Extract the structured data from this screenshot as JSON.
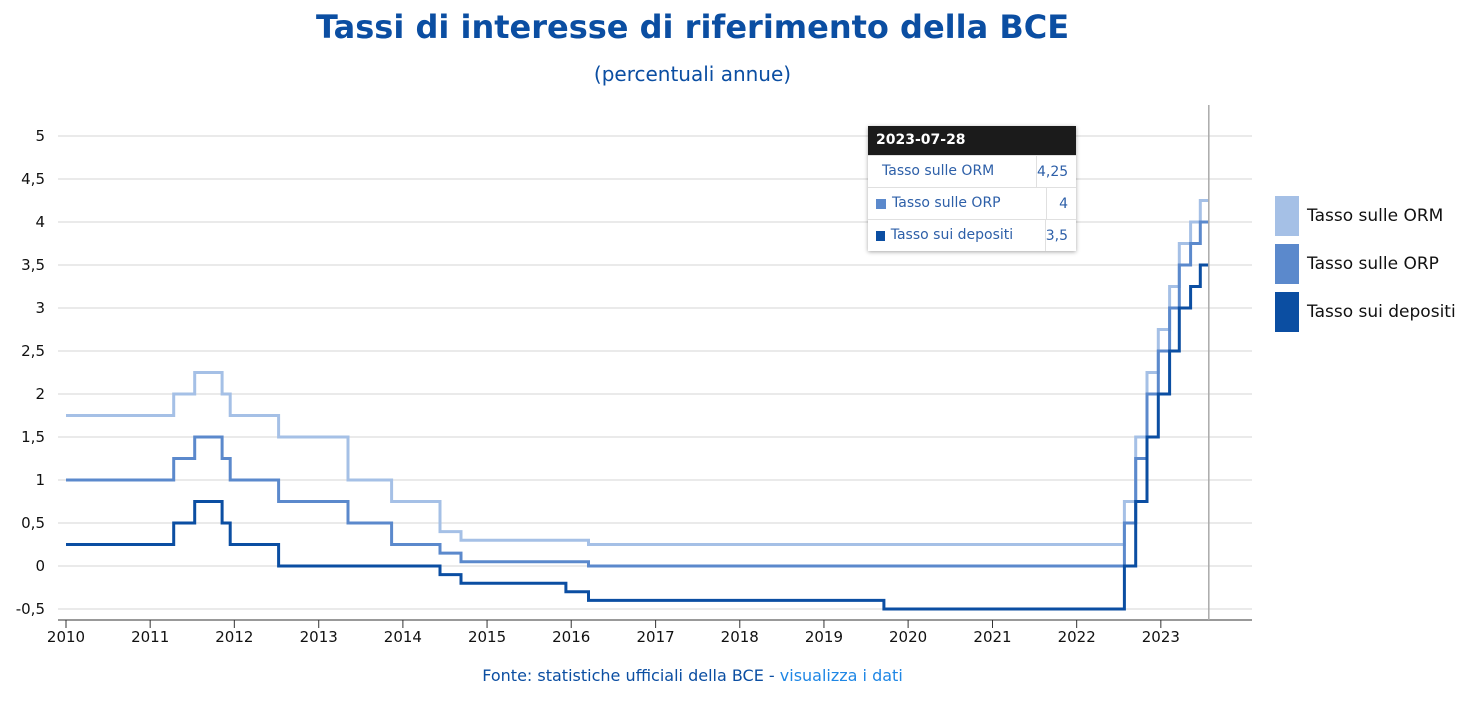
{
  "chart_data": {
    "type": "line",
    "step": true,
    "title": "Tassi di interesse di riferimento della BCE",
    "subtitle": "(percentuali annue)",
    "y_ticks": [
      "5",
      "4,5",
      "4",
      "3,5",
      "3",
      "2,5",
      "2",
      "1,5",
      "1",
      "0,5",
      "0",
      "-0,5"
    ],
    "x_ticks": [
      "2010",
      "2011",
      "2012",
      "2013",
      "2014",
      "2015",
      "2016",
      "2017",
      "2018",
      "2019",
      "2020",
      "2021",
      "2022",
      "2023"
    ],
    "ylim": [
      -0.6,
      5.3
    ],
    "xlim": [
      "2010-01-01",
      "2023-12-31"
    ],
    "grid": true,
    "legend_position": "right",
    "series": [
      {
        "name": "Tasso sulle ORM",
        "color": "#a5c0e6",
        "points": [
          [
            "2010-01-01",
            1.75
          ],
          [
            "2011-04-13",
            2.0
          ],
          [
            "2011-07-13",
            2.25
          ],
          [
            "2011-11-09",
            2.0
          ],
          [
            "2011-12-14",
            1.75
          ],
          [
            "2012-07-11",
            1.5
          ],
          [
            "2013-05-08",
            1.0
          ],
          [
            "2013-11-13",
            0.75
          ],
          [
            "2014-06-11",
            0.4
          ],
          [
            "2014-09-10",
            0.3
          ],
          [
            "2016-03-16",
            0.25
          ],
          [
            "2022-07-27",
            0.75
          ],
          [
            "2022-09-14",
            1.5
          ],
          [
            "2022-11-02",
            2.25
          ],
          [
            "2022-12-21",
            2.75
          ],
          [
            "2023-02-08",
            3.25
          ],
          [
            "2023-03-22",
            3.75
          ],
          [
            "2023-05-10",
            4.0
          ],
          [
            "2023-06-21",
            4.25
          ],
          [
            "2023-07-28",
            4.25
          ]
        ]
      },
      {
        "name": "Tasso sulle ORP",
        "color": "#5b89cc",
        "points": [
          [
            "2010-01-01",
            1.0
          ],
          [
            "2011-04-13",
            1.25
          ],
          [
            "2011-07-13",
            1.5
          ],
          [
            "2011-11-09",
            1.25
          ],
          [
            "2011-12-14",
            1.0
          ],
          [
            "2012-07-11",
            0.75
          ],
          [
            "2013-05-08",
            0.5
          ],
          [
            "2013-11-13",
            0.25
          ],
          [
            "2014-06-11",
            0.15
          ],
          [
            "2014-09-10",
            0.05
          ],
          [
            "2016-03-16",
            0.0
          ],
          [
            "2022-07-27",
            0.5
          ],
          [
            "2022-09-14",
            1.25
          ],
          [
            "2022-11-02",
            2.0
          ],
          [
            "2022-12-21",
            2.5
          ],
          [
            "2023-02-08",
            3.0
          ],
          [
            "2023-03-22",
            3.5
          ],
          [
            "2023-05-10",
            3.75
          ],
          [
            "2023-06-21",
            4.0
          ],
          [
            "2023-07-28",
            4.0
          ]
        ]
      },
      {
        "name": "Tasso sui depositi",
        "color": "#0b4ea2",
        "points": [
          [
            "2010-01-01",
            0.25
          ],
          [
            "2011-04-13",
            0.5
          ],
          [
            "2011-07-13",
            0.75
          ],
          [
            "2011-11-09",
            0.5
          ],
          [
            "2011-12-14",
            0.25
          ],
          [
            "2012-07-11",
            0.0
          ],
          [
            "2014-06-11",
            -0.1
          ],
          [
            "2014-09-10",
            -0.2
          ],
          [
            "2015-12-09",
            -0.3
          ],
          [
            "2016-03-16",
            -0.4
          ],
          [
            "2019-09-18",
            -0.5
          ],
          [
            "2022-07-27",
            0.0
          ],
          [
            "2022-09-14",
            0.75
          ],
          [
            "2022-11-02",
            1.5
          ],
          [
            "2022-12-21",
            2.0
          ],
          [
            "2023-02-08",
            2.5
          ],
          [
            "2023-03-22",
            3.0
          ],
          [
            "2023-05-10",
            3.25
          ],
          [
            "2023-06-21",
            3.5
          ],
          [
            "2023-07-28",
            3.5
          ]
        ]
      }
    ],
    "crosshair_date": "2023-07-28"
  },
  "tooltip": {
    "date": "2023-07-28",
    "rows": [
      {
        "label": "Tasso sulle ORM",
        "value": "4,25",
        "color": "#a5c0e6"
      },
      {
        "label": "Tasso sulle ORP",
        "value": "4",
        "color": "#5b89cc"
      },
      {
        "label": "Tasso sui depositi",
        "value": "3,5",
        "color": "#0b4ea2"
      }
    ]
  },
  "footer": {
    "source_text": "Fonte: statistiche ufficiali della BCE - ",
    "link_text": "visualizza i dati"
  }
}
